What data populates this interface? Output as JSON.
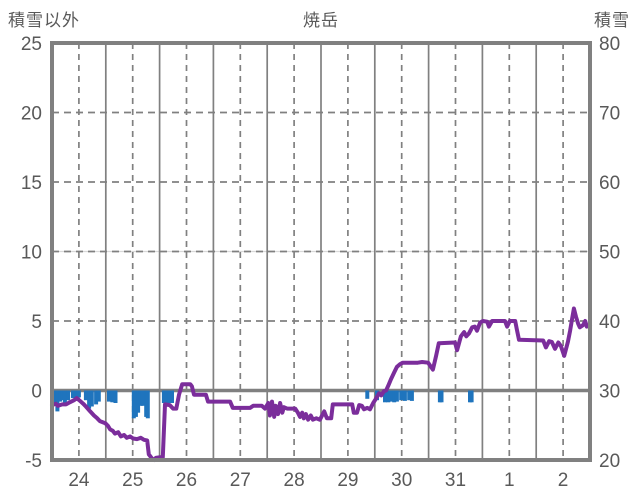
{
  "chart_data": {
    "type": "line",
    "title": "焼岳",
    "left_axis": {
      "label": "積雪以外",
      "min": -5,
      "max": 25,
      "ticks": [
        25,
        20,
        15,
        10,
        5,
        0,
        -5
      ]
    },
    "right_axis": {
      "label": "積雪",
      "min": 20,
      "max": 80,
      "ticks": [
        80,
        70,
        60,
        50,
        40,
        30,
        20
      ]
    },
    "x_axis": {
      "labels": [
        "24",
        "25",
        "26",
        "27",
        "28",
        "29",
        "30",
        "31",
        "1",
        "2"
      ],
      "range_days": 10,
      "grid": "solid lines at midnight, dashed lines at noon"
    },
    "grid": {
      "horizontal_dashed_at": [
        5,
        10,
        15,
        20
      ],
      "faint_line_at": 10,
      "zero_line": 0
    },
    "colors": {
      "line": "#7B2D9B",
      "bars": "#1F74BD",
      "grid": "#808080",
      "faint_grid": "#d9d9d9",
      "text": "#595959",
      "background": "#ffffff"
    },
    "series": [
      {
        "name": "snow-depth-line",
        "axis": "left",
        "type": "line",
        "color": "#7B2D9B",
        "points": [
          [
            0.0,
            -1.05
          ],
          [
            0.07,
            -0.95
          ],
          [
            0.11,
            -1.1
          ],
          [
            0.19,
            -1.0
          ],
          [
            0.26,
            -1.0
          ],
          [
            0.33,
            -0.85
          ],
          [
            0.41,
            -0.7
          ],
          [
            0.46,
            -0.55
          ],
          [
            0.52,
            -0.75
          ],
          [
            0.58,
            -0.95
          ],
          [
            0.63,
            -1.15
          ],
          [
            0.71,
            -1.5
          ],
          [
            0.78,
            -1.8
          ],
          [
            0.84,
            -2.0
          ],
          [
            0.89,
            -2.2
          ],
          [
            0.99,
            -2.35
          ],
          [
            1.04,
            -2.55
          ],
          [
            1.08,
            -2.8
          ],
          [
            1.13,
            -2.9
          ],
          [
            1.17,
            -3.1
          ],
          [
            1.23,
            -3.0
          ],
          [
            1.28,
            -3.3
          ],
          [
            1.34,
            -3.2
          ],
          [
            1.39,
            -3.4
          ],
          [
            1.45,
            -3.3
          ],
          [
            1.51,
            -3.45
          ],
          [
            1.58,
            -3.5
          ],
          [
            1.65,
            -3.4
          ],
          [
            1.71,
            -3.55
          ],
          [
            1.77,
            -3.6
          ],
          [
            1.8,
            -4.6
          ],
          [
            1.86,
            -4.9
          ],
          [
            1.9,
            -5.0
          ],
          [
            1.93,
            -4.85
          ],
          [
            2.01,
            -4.8
          ],
          [
            2.06,
            -4.8
          ],
          [
            2.1,
            -1.0
          ],
          [
            2.19,
            -1.05
          ],
          [
            2.25,
            -1.3
          ],
          [
            2.31,
            -1.3
          ],
          [
            2.36,
            -0.3
          ],
          [
            2.42,
            0.45
          ],
          [
            2.57,
            0.45
          ],
          [
            2.6,
            0.3
          ],
          [
            2.64,
            -0.3
          ],
          [
            2.86,
            -0.3
          ],
          [
            2.9,
            -0.8
          ],
          [
            3.31,
            -0.8
          ],
          [
            3.36,
            -1.25
          ],
          [
            3.68,
            -1.25
          ],
          [
            3.74,
            -1.1
          ],
          [
            3.9,
            -1.1
          ],
          [
            3.96,
            -1.3
          ],
          [
            4.02,
            -0.9
          ],
          [
            4.05,
            -1.8
          ],
          [
            4.09,
            -0.8
          ],
          [
            4.13,
            -1.9
          ],
          [
            4.16,
            -1.1
          ],
          [
            4.2,
            -1.7
          ],
          [
            4.24,
            -0.9
          ],
          [
            4.28,
            -1.6
          ],
          [
            4.31,
            -1.2
          ],
          [
            4.37,
            -1.3
          ],
          [
            4.52,
            -1.3
          ],
          [
            4.57,
            -1.6
          ],
          [
            4.61,
            -1.9
          ],
          [
            4.65,
            -1.6
          ],
          [
            4.68,
            -2.0
          ],
          [
            4.72,
            -1.7
          ],
          [
            4.76,
            -2.1
          ],
          [
            4.81,
            -1.8
          ],
          [
            4.85,
            -2.1
          ],
          [
            4.91,
            -2.0
          ],
          [
            4.98,
            -2.1
          ],
          [
            5.06,
            -1.5
          ],
          [
            5.11,
            -2.0
          ],
          [
            5.19,
            -2.0
          ],
          [
            5.22,
            -1.0
          ],
          [
            5.58,
            -1.0
          ],
          [
            5.61,
            -1.6
          ],
          [
            5.67,
            -1.6
          ],
          [
            5.71,
            -1.05
          ],
          [
            5.76,
            -1.1
          ],
          [
            5.8,
            -1.35
          ],
          [
            5.86,
            -1.25
          ],
          [
            5.91,
            -1.35
          ],
          [
            5.97,
            -0.9
          ],
          [
            6.02,
            -0.6
          ],
          [
            6.08,
            -0.2
          ],
          [
            6.12,
            -0.35
          ],
          [
            6.17,
            -0.05
          ],
          [
            6.21,
            0.0
          ],
          [
            6.25,
            0.35
          ],
          [
            6.3,
            0.8
          ],
          [
            6.36,
            1.3
          ],
          [
            6.41,
            1.7
          ],
          [
            6.47,
            1.9
          ],
          [
            6.52,
            2.0
          ],
          [
            6.8,
            2.0
          ],
          [
            6.88,
            2.05
          ],
          [
            6.99,
            2.0
          ],
          [
            7.08,
            1.5
          ],
          [
            7.14,
            2.5
          ],
          [
            7.19,
            3.4
          ],
          [
            7.49,
            3.45
          ],
          [
            7.53,
            2.9
          ],
          [
            7.6,
            3.9
          ],
          [
            7.66,
            4.2
          ],
          [
            7.7,
            3.9
          ],
          [
            7.75,
            4.1
          ],
          [
            7.81,
            4.55
          ],
          [
            7.86,
            4.6
          ],
          [
            7.9,
            4.3
          ],
          [
            7.96,
            4.9
          ],
          [
            8.01,
            5.0
          ],
          [
            8.09,
            4.95
          ],
          [
            8.12,
            4.6
          ],
          [
            8.18,
            5.0
          ],
          [
            8.42,
            5.0
          ],
          [
            8.46,
            4.6
          ],
          [
            8.51,
            5.0
          ],
          [
            8.61,
            5.0
          ],
          [
            8.64,
            4.4
          ],
          [
            8.68,
            3.65
          ],
          [
            9.13,
            3.6
          ],
          [
            9.18,
            3.1
          ],
          [
            9.24,
            3.55
          ],
          [
            9.29,
            3.5
          ],
          [
            9.35,
            3.0
          ],
          [
            9.41,
            3.45
          ],
          [
            9.46,
            3.2
          ],
          [
            9.52,
            2.5
          ],
          [
            9.59,
            3.5
          ],
          [
            9.63,
            4.3
          ],
          [
            9.67,
            5.2
          ],
          [
            9.7,
            5.9
          ],
          [
            9.74,
            5.3
          ],
          [
            9.78,
            4.8
          ],
          [
            9.81,
            4.55
          ],
          [
            9.87,
            4.7
          ],
          [
            9.91,
            5.0
          ],
          [
            9.94,
            4.6
          ],
          [
            10.0,
            4.7
          ]
        ]
      },
      {
        "name": "non-snow-precipitation-bars",
        "axis": "left",
        "type": "bar",
        "color": "#1F74BD",
        "points": [
          [
            0.02,
            -0.7
          ],
          [
            0.07,
            -0.9
          ],
          [
            0.1,
            -1.5
          ],
          [
            0.15,
            -0.8
          ],
          [
            0.2,
            -0.7
          ],
          [
            0.24,
            -0.9
          ],
          [
            0.3,
            -0.7
          ],
          [
            0.39,
            -0.55
          ],
          [
            0.45,
            -0.6
          ],
          [
            0.5,
            -0.5
          ],
          [
            0.63,
            -0.7
          ],
          [
            0.69,
            -1.3
          ],
          [
            0.74,
            -1.15
          ],
          [
            0.82,
            -1.0
          ],
          [
            0.87,
            -0.8
          ],
          [
            1.06,
            -0.8
          ],
          [
            1.12,
            -0.85
          ],
          [
            1.18,
            -0.9
          ],
          [
            1.52,
            -2.0
          ],
          [
            1.56,
            -1.9
          ],
          [
            1.6,
            -1.6
          ],
          [
            1.65,
            -1.1
          ],
          [
            1.69,
            -1.1
          ],
          [
            1.75,
            -1.9
          ],
          [
            1.78,
            -2.0
          ],
          [
            2.08,
            -0.9
          ],
          [
            2.12,
            -0.9
          ],
          [
            2.19,
            -0.9
          ],
          [
            2.23,
            -0.9
          ],
          [
            5.86,
            -0.6
          ],
          [
            6.04,
            -0.7
          ],
          [
            6.19,
            -0.85
          ],
          [
            6.25,
            -0.85
          ],
          [
            6.3,
            -0.8
          ],
          [
            6.36,
            -0.85
          ],
          [
            6.41,
            -0.8
          ],
          [
            6.49,
            -0.7
          ],
          [
            6.56,
            -0.75
          ],
          [
            6.64,
            -0.7
          ],
          [
            6.69,
            -0.75
          ],
          [
            7.21,
            -0.85
          ],
          [
            7.24,
            -0.85
          ],
          [
            7.77,
            -0.85
          ],
          [
            7.8,
            -0.85
          ]
        ]
      }
    ]
  }
}
